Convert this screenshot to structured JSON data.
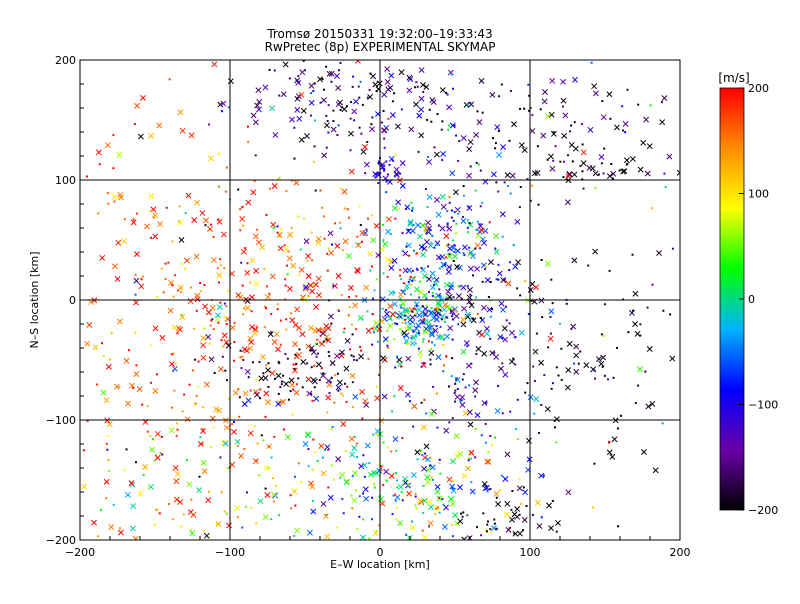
{
  "chart_data": {
    "type": "scatter",
    "title": "Tromsø 20150331 19:32:00–19:33:43",
    "subtitle": "RwPretec (8p) EXPERIMENTAL SKYMAP",
    "xlabel": "E–W location [km]",
    "ylabel": "N–S location [km]",
    "xlim": [
      -200,
      200
    ],
    "ylim": [
      -200,
      200
    ],
    "xticks": [
      -200,
      -100,
      0,
      100,
      200
    ],
    "yticks": [
      -200,
      -100,
      0,
      100,
      200
    ],
    "x_tick_labels": [
      "−200",
      "−100",
      "0",
      "100",
      "200"
    ],
    "y_tick_labels": [
      "−200",
      "−100",
      "0",
      "100",
      "200"
    ],
    "grid": true,
    "marker_types": [
      "x",
      "dot"
    ],
    "value_units": "[m/s]",
    "colorbar": {
      "label": "[m/s]",
      "range": [
        -200,
        200
      ],
      "ticks": [
        200,
        100,
        0,
        -100,
        -200
      ],
      "tick_labels": [
        "200",
        "100",
        "0",
        "−100",
        "−200"
      ],
      "colors": [
        "#000000",
        "#6a00a8",
        "#0000ff",
        "#00b4ff",
        "#00ff00",
        "#ffff00",
        "#ff8c00",
        "#ff0000"
      ]
    },
    "clusters": [
      {
        "cx": -20,
        "cy": 170,
        "sx": 35,
        "sy": 22,
        "vmean": -170,
        "vspread": 45,
        "n": 160
      },
      {
        "cx": 2,
        "cy": 108,
        "sx": 6,
        "sy": 5,
        "vmean": -110,
        "vspread": 15,
        "n": 35
      },
      {
        "cx": 120,
        "cy": 140,
        "sx": 40,
        "sy": 25,
        "vmean": -180,
        "vspread": 40,
        "n": 90
      },
      {
        "cx": 140,
        "cy": 110,
        "sx": 25,
        "sy": 6,
        "vmean": -195,
        "vspread": 15,
        "n": 35
      },
      {
        "cx": 30,
        "cy": 50,
        "sx": 25,
        "sy": 30,
        "vmean": -60,
        "vspread": 60,
        "n": 150
      },
      {
        "cx": 25,
        "cy": -15,
        "sx": 18,
        "sy": 15,
        "vmean": -20,
        "vspread": 60,
        "n": 170
      },
      {
        "cx": -60,
        "cy": 0,
        "sx": 55,
        "sy": 60,
        "vmean": 170,
        "vspread": 40,
        "n": 360
      },
      {
        "cx": -155,
        "cy": 20,
        "sx": 40,
        "sy": 90,
        "vmean": 170,
        "vspread": 50,
        "n": 130
      },
      {
        "cx": -55,
        "cy": -55,
        "sx": 25,
        "sy": 18,
        "vmean": -190,
        "vspread": 30,
        "n": 90
      },
      {
        "cx": 80,
        "cy": -40,
        "sx": 35,
        "sy": 40,
        "vmean": -170,
        "vspread": 50,
        "n": 100
      },
      {
        "cx": 150,
        "cy": -50,
        "sx": 30,
        "sy": 50,
        "vmean": -195,
        "vspread": 15,
        "n": 80
      },
      {
        "cx": 15,
        "cy": -160,
        "sx": 45,
        "sy": 30,
        "vmean": 40,
        "vspread": 80,
        "n": 240
      },
      {
        "cx": -140,
        "cy": -160,
        "sx": 40,
        "sy": 30,
        "vmean": 90,
        "vspread": 80,
        "n": 110
      },
      {
        "cx": 60,
        "cy": 0,
        "sx": 20,
        "sy": 90,
        "vmean": -110,
        "vspread": 70,
        "n": 140
      },
      {
        "cx": 85,
        "cy": -185,
        "sx": 18,
        "sy": 12,
        "vmean": -190,
        "vspread": 20,
        "n": 45
      },
      {
        "cx": 0,
        "cy": 0,
        "sx": 115,
        "sy": 115,
        "vmean": 0,
        "vspread": 160,
        "n": 260
      }
    ]
  }
}
